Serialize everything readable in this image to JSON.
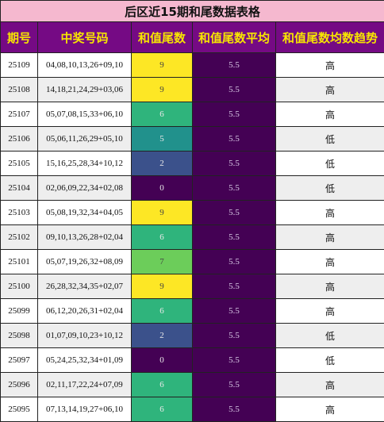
{
  "title": "后区近15期和尾数据表格",
  "headers": [
    "期号",
    "中奖号码",
    "和值尾数",
    "和值尾数平均",
    "和值尾数均数趋势"
  ],
  "colors": {
    "title_bg": "#f5b8cf",
    "header_bg": "#750a84",
    "header_text": "#f7e600",
    "avg_bg": "#440154",
    "tail_scale": {
      "0": "#440154",
      "2": "#3b518b",
      "5": "#21918c",
      "6": "#2fb47c",
      "7": "#6ccd5a",
      "9": "#fde725"
    }
  },
  "rows": [
    {
      "issue": "25109",
      "numbers": "04,08,10,13,26+09,10",
      "tail": "9",
      "avg": "5.5",
      "trend": "高"
    },
    {
      "issue": "25108",
      "numbers": "14,18,21,24,29+03,06",
      "tail": "9",
      "avg": "5.5",
      "trend": "高"
    },
    {
      "issue": "25107",
      "numbers": "05,07,08,15,33+06,10",
      "tail": "6",
      "avg": "5.5",
      "trend": "高"
    },
    {
      "issue": "25106",
      "numbers": "05,06,11,26,29+05,10",
      "tail": "5",
      "avg": "5.5",
      "trend": "低"
    },
    {
      "issue": "25105",
      "numbers": "15,16,25,28,34+10,12",
      "tail": "2",
      "avg": "5.5",
      "trend": "低"
    },
    {
      "issue": "25104",
      "numbers": "02,06,09,22,34+02,08",
      "tail": "0",
      "avg": "5.5",
      "trend": "低"
    },
    {
      "issue": "25103",
      "numbers": "05,08,19,32,34+04,05",
      "tail": "9",
      "avg": "5.5",
      "trend": "高"
    },
    {
      "issue": "25102",
      "numbers": "09,10,13,26,28+02,04",
      "tail": "6",
      "avg": "5.5",
      "trend": "高"
    },
    {
      "issue": "25101",
      "numbers": "05,07,19,26,32+08,09",
      "tail": "7",
      "avg": "5.5",
      "trend": "高"
    },
    {
      "issue": "25100",
      "numbers": "26,28,32,34,35+02,07",
      "tail": "9",
      "avg": "5.5",
      "trend": "高"
    },
    {
      "issue": "25099",
      "numbers": "06,12,20,26,31+02,04",
      "tail": "6",
      "avg": "5.5",
      "trend": "高"
    },
    {
      "issue": "25098",
      "numbers": "01,07,09,10,23+10,12",
      "tail": "2",
      "avg": "5.5",
      "trend": "低"
    },
    {
      "issue": "25097",
      "numbers": "05,24,25,32,34+01,09",
      "tail": "0",
      "avg": "5.5",
      "trend": "低"
    },
    {
      "issue": "25096",
      "numbers": "02,11,17,22,24+07,09",
      "tail": "6",
      "avg": "5.5",
      "trend": "高"
    },
    {
      "issue": "25095",
      "numbers": "07,13,14,19,27+06,10",
      "tail": "6",
      "avg": "5.5",
      "trend": "高"
    }
  ]
}
